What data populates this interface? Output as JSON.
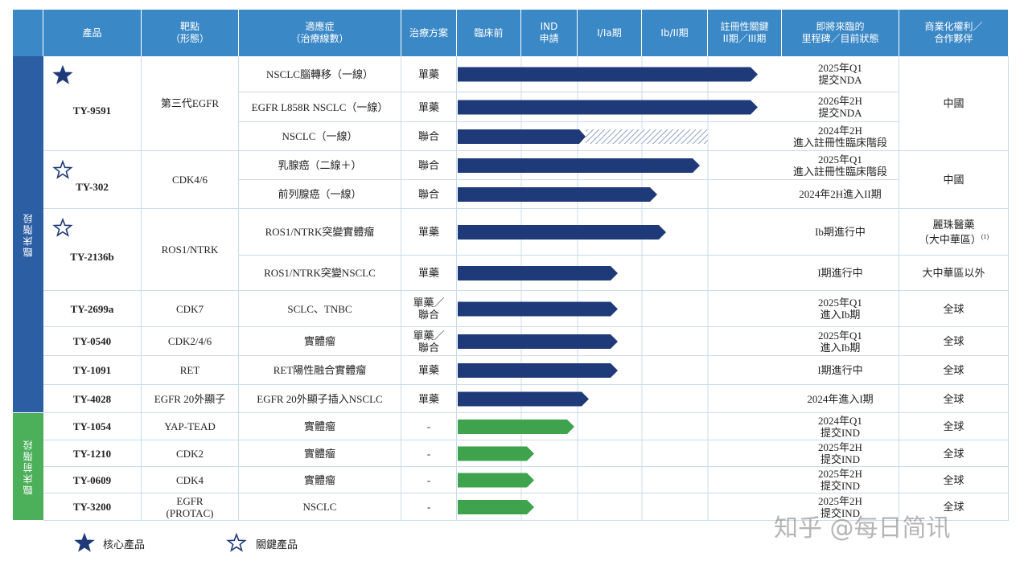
{
  "header": [
    [
      "產品"
    ],
    [
      "靶點",
      "（形態）"
    ],
    [
      "適應症",
      "（治療線數）"
    ],
    [
      "治療方案"
    ],
    [
      "臨床前"
    ],
    [
      "IND",
      "申請"
    ],
    [
      "I/Ia期"
    ],
    [
      "Ib/II期"
    ],
    [
      "註冊性關鍵",
      "II期／III期"
    ],
    [
      "即將來臨的",
      "里程碑／目前狀態"
    ],
    [
      "商業化權利／",
      "合作夥伴"
    ]
  ],
  "groups": [
    "臨床階段",
    "臨床前階段"
  ],
  "products": [
    {
      "name": "TY-9591",
      "mark": "core",
      "target": [
        "第三代EGFR"
      ],
      "commercial": [
        "中國"
      ],
      "rows": [
        {
          "indication": "NSCLC腦轉移（一線）",
          "regimen": [
            "單藥"
          ],
          "milestone": [
            "2025年Q1",
            "提交NDA"
          ]
        },
        {
          "indication": "EGFR L858R NSCLC（一線）",
          "regimen": [
            "單藥"
          ],
          "milestone": [
            "2026年2H",
            "提交NDA"
          ]
        },
        {
          "indication": "NSCLC（一線）",
          "regimen": [
            "聯合"
          ],
          "milestone": [
            "2024年2H",
            "進入註冊性臨床階段"
          ]
        }
      ]
    },
    {
      "name": "TY-302",
      "mark": "key",
      "target": [
        "CDK4/6"
      ],
      "commercial": [
        "中國"
      ],
      "rows": [
        {
          "indication": "乳腺癌（二線＋）",
          "regimen": [
            "聯合"
          ],
          "milestone": [
            "2025年Q1",
            "進入註冊性臨床階段"
          ]
        },
        {
          "indication": "前列腺癌（一線）",
          "regimen": [
            "聯合"
          ],
          "milestone": [
            "2024年2H進入II期"
          ]
        }
      ]
    },
    {
      "name": "TY-2136b",
      "mark": "key",
      "target": [
        "ROS1/NTRK"
      ],
      "rows": [
        {
          "indication": "ROS1/NTRK突變實體瘤",
          "regimen": [
            "單藥"
          ],
          "milestone": [
            "Ib期進行中"
          ],
          "commercial": [
            "麗珠醫藥",
            "（大中華區）"
          ],
          "sup": "(1)"
        },
        {
          "indication": "ROS1/NTRK突變NSCLC",
          "regimen": [
            "單藥"
          ],
          "milestone": [
            "I期進行中"
          ],
          "commercial": [
            "大中華區以外"
          ]
        }
      ]
    },
    {
      "name": "TY-2699a",
      "target": [
        "CDK7"
      ],
      "commercial": [
        "全球"
      ],
      "rows": [
        {
          "indication": "SCLC、TNBC",
          "regimen": [
            "單藥／",
            "聯合"
          ],
          "milestone": [
            "2025年Q1",
            "進入Ib期"
          ]
        }
      ]
    },
    {
      "name": "TY-0540",
      "target": [
        "CDK2/4/6"
      ],
      "commercial": [
        "全球"
      ],
      "rows": [
        {
          "indication": "實體瘤",
          "regimen": [
            "單藥／",
            "聯合"
          ],
          "milestone": [
            "2025年Q1",
            "進入Ib期"
          ]
        }
      ]
    },
    {
      "name": "TY-1091",
      "target": [
        "RET"
      ],
      "commercial": [
        "全球"
      ],
      "rows": [
        {
          "indication": "RET陽性融合實體瘤",
          "regimen": [
            "單藥"
          ],
          "milestone": [
            "I期進行中"
          ]
        }
      ]
    },
    {
      "name": "TY-4028",
      "target": [
        "EGFR 20外顯子"
      ],
      "commercial": [
        "全球"
      ],
      "rows": [
        {
          "indication": "EGFR 20外顯子插入NSCLC",
          "regimen": [
            "單藥"
          ],
          "milestone": [
            "2024年進入I期"
          ]
        }
      ]
    },
    {
      "name": "TY-1054",
      "target": [
        "YAP-TEAD"
      ],
      "commercial": [
        "全球"
      ],
      "rows": [
        {
          "indication": "實體瘤",
          "regimen": [
            "-"
          ],
          "milestone": [
            "2024年Q1",
            "提交IND"
          ]
        }
      ]
    },
    {
      "name": "TY-1210",
      "target": [
        "CDK2"
      ],
      "commercial": [
        "全球"
      ],
      "rows": [
        {
          "indication": "實體瘤",
          "regimen": [
            "-"
          ],
          "milestone": [
            "2025年2H",
            "提交IND"
          ]
        }
      ]
    },
    {
      "name": "TY-0609",
      "target": [
        "CDK4"
      ],
      "commercial": [
        "全球"
      ],
      "rows": [
        {
          "indication": "實體瘤",
          "regimen": [
            "-"
          ],
          "milestone": [
            "2025年2H",
            "提交IND"
          ]
        }
      ]
    },
    {
      "name": "TY-3200",
      "target": [
        "EGFR",
        "(PROTAC)"
      ],
      "commercial": [
        "全球"
      ],
      "rows": [
        {
          "indication": "NSCLC",
          "regimen": [
            "-"
          ],
          "milestone": [
            "2025年2H",
            "提交IND"
          ]
        }
      ]
    }
  ],
  "legend": [
    {
      "label": "核心產品",
      "mark": "core"
    },
    {
      "label": "關鍵產品",
      "mark": "key"
    }
  ],
  "watermark": "知乎 @每日简讯"
}
